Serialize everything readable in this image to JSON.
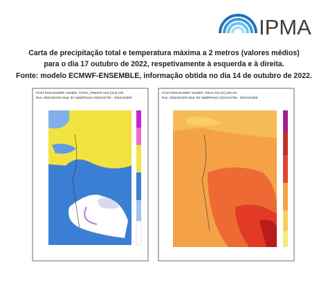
{
  "header": {
    "logo_text": "IPMA"
  },
  "caption": {
    "lines": [
      "Carta de precipitação total e temperatura máxima a 2 metros (valores médios)",
      "para o dia 17 outubro de 2022, respetivamente à esquerda e à direita.",
      "Fonte: modelo ECMWF-ENSEMBLE, informação obtida no dia 14 de outubro de 2022."
    ]
  },
  "maps": [
    {
      "header_lines": [
        "FCST ENS ECMWF Variable: TOTAL_PRECIP AVG [mm] 24h",
        "Run: 2022101400 Step: 96 Valid/Period: 2022101700 - 2022101800"
      ]
    },
    {
      "header_lines": [
        "FCST ENS ECMWF Variable: TMAX AVG [C] 24h 2m",
        "Run: 2022101400 Step: 96 Valid/Period: 2022101700 - 2022101800"
      ]
    }
  ]
}
